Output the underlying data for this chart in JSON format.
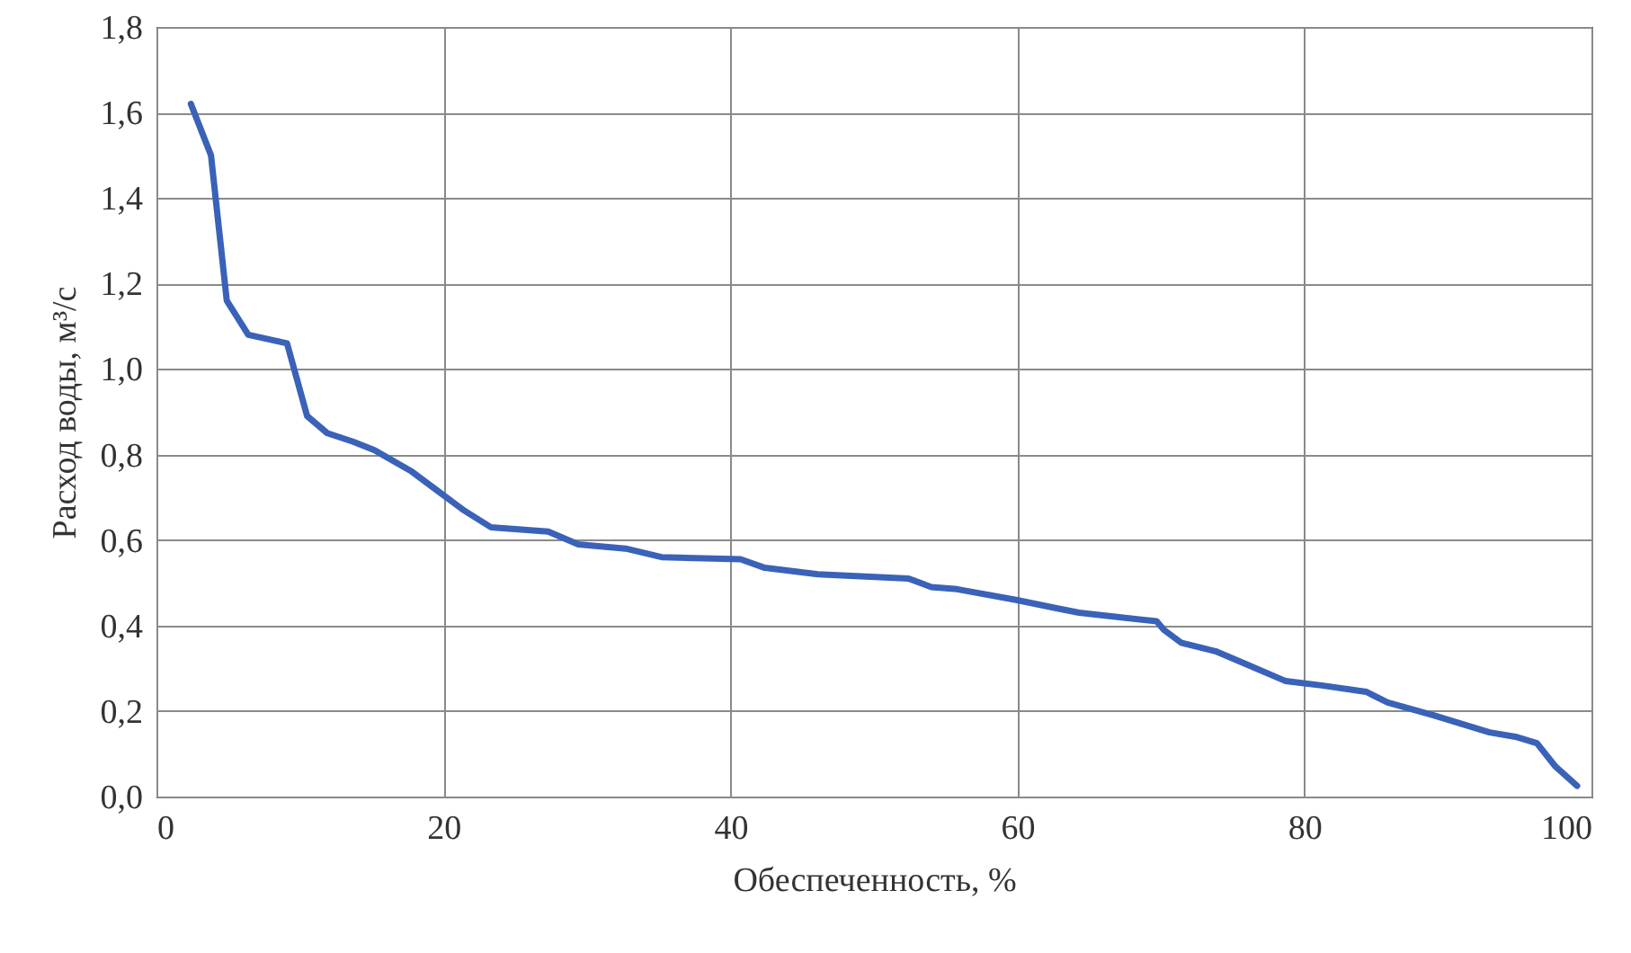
{
  "chart_data": {
    "type": "line",
    "xlabel": "Обеспеченность, %",
    "ylabel": "Расход воды, м³/с",
    "x": [
      2.4,
      3.8,
      4.9,
      6.4,
      9.1,
      10.5,
      11.9,
      13.7,
      15.2,
      17.8,
      19.8,
      21.4,
      23.3,
      27.3,
      29.4,
      32.7,
      35.2,
      40.7,
      42.4,
      46.1,
      52.4,
      54,
      55.8,
      59.9,
      62.8,
      64.3,
      69.7,
      70.2,
      71.4,
      73.8,
      75.9,
      78.7,
      81.2,
      84.3,
      85.8,
      89,
      92.9,
      94.7,
      96.2,
      97.5,
      99
    ],
    "series": [
      {
        "color": "#3a62b8",
        "values": [
          1.62,
          1.5,
          1.16,
          1.08,
          1.06,
          0.89,
          0.85,
          0.83,
          0.81,
          0.76,
          0.71,
          0.67,
          0.63,
          0.62,
          0.59,
          0.58,
          0.56,
          0.555,
          0.535,
          0.52,
          0.51,
          0.49,
          0.485,
          0.46,
          0.44,
          0.43,
          0.41,
          0.39,
          0.36,
          0.34,
          0.31,
          0.27,
          0.26,
          0.245,
          0.22,
          0.19,
          0.15,
          0.14,
          0.125,
          0.07,
          0.025
        ]
      }
    ],
    "xlim": [
      0,
      100
    ],
    "xticks": [
      0,
      20,
      40,
      60,
      80,
      100
    ],
    "ylim": [
      0,
      1.8
    ],
    "yticks": [
      {
        "value": 0,
        "label": "0,0"
      },
      {
        "value": 0.2,
        "label": "0,2"
      },
      {
        "value": 0.4,
        "label": "0,4"
      },
      {
        "value": 0.6,
        "label": "0,6"
      },
      {
        "value": 0.8,
        "label": "0,8"
      },
      {
        "value": 1,
        "label": "1,0"
      },
      {
        "value": 1.2,
        "label": "1,2"
      },
      {
        "value": 1.4,
        "label": "1,4"
      },
      {
        "value": 1.6,
        "label": "1,6"
      },
      {
        "value": 1.8,
        "label": "1,8"
      }
    ],
    "grid": true,
    "line_style": "solid",
    "marker": "none"
  }
}
